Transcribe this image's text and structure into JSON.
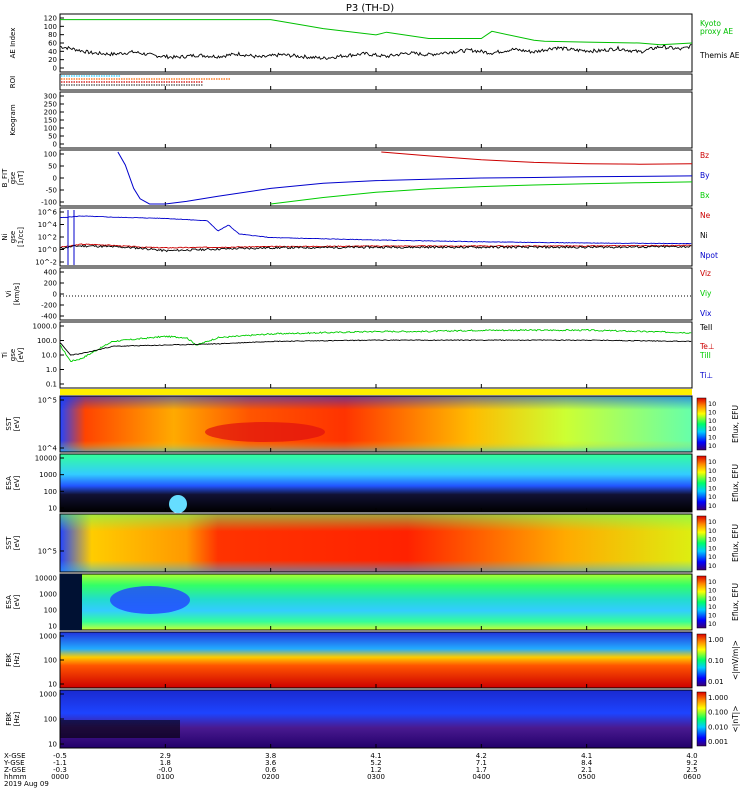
{
  "chart_data": {
    "type": "line",
    "title": "P3 (TH-D)",
    "footer": {
      "row_labels": [
        "X-GSE",
        "Y-GSE",
        "Z-GSE",
        "hhmm",
        "2019 Aug 09"
      ],
      "columns": [
        [
          "-0.5",
          "-1.1",
          "-0.3",
          "0000"
        ],
        [
          "2.9",
          "1.8",
          "-0.0",
          "0100"
        ],
        [
          "3.8",
          "3.6",
          "0.6",
          "0200"
        ],
        [
          "4.1",
          "5.2",
          "1.2",
          "0300"
        ],
        [
          "4.2",
          "7.1",
          "1.7",
          "0400"
        ],
        [
          "4.1",
          "8.4",
          "2.1",
          "0500"
        ],
        [
          "4.0",
          "9.2",
          "2.5",
          "0600"
        ]
      ]
    },
    "panels": [
      {
        "id": "ae",
        "ylabel": [
          "AE Index"
        ],
        "yticks": [
          "120",
          "100",
          "80",
          "60",
          "40",
          "20",
          "0"
        ],
        "series": [
          {
            "name": "Kyoto proxy AE",
            "color": "#00c000",
            "x": [
              0,
              0.5,
              1.0,
              1.5,
              2.0,
              2.3,
              2.5,
              3.0,
              3.1,
              3.5,
              4.0,
              4.1,
              4.5,
              4.6,
              5.0,
              5.5,
              5.7,
              6.0
            ],
            "y": [
              112,
              112,
              112,
              112,
              112,
              100,
              92,
              78,
              84,
              70,
              70,
              86,
              66,
              64,
              62,
              60,
              56,
              60
            ]
          },
          {
            "name": "Themis AE",
            "color": "#000000",
            "x": [
              0,
              0.1,
              0.3,
              0.5,
              0.7,
              0.9,
              1.1,
              1.3,
              1.5,
              1.7,
              1.9,
              2.1,
              2.3,
              2.5,
              2.7,
              2.9,
              3.1,
              3.3,
              3.5,
              3.7,
              3.9,
              4.1,
              4.3,
              4.5,
              4.7,
              4.9,
              5.1,
              5.3,
              5.5,
              5.7,
              5.9,
              6.0
            ],
            "y": [
              52,
              48,
              38,
              35,
              40,
              32,
              28,
              33,
              30,
              36,
              28,
              34,
              30,
              26,
              32,
              36,
              30,
              38,
              34,
              40,
              44,
              38,
              46,
              40,
              50,
              44,
              42,
              48,
              40,
              52,
              46,
              54
            ]
          }
        ]
      },
      {
        "id": "roi",
        "ylabel": [
          "ROI"
        ],
        "yticks": []
      },
      {
        "id": "keogram",
        "ylabel": [
          "Keogram"
        ],
        "yticks": [
          "300",
          "250",
          "200",
          "150",
          "100",
          "50",
          "0"
        ]
      },
      {
        "id": "bfield",
        "ylabel": [
          "B_FIT",
          "gse",
          "[nT]"
        ],
        "yticks": [
          "100",
          "50",
          "0",
          "-50",
          "-100"
        ],
        "series": [
          {
            "name": "Bz",
            "color": "#cc0000",
            "x": [
              3.05,
              3.5,
              4.0,
              4.5,
              5.0,
              5.5,
              6.0
            ],
            "y": [
              100,
              85,
              70,
              60,
              55,
              53,
              55
            ]
          },
          {
            "name": "By",
            "color": "#0000cc",
            "x": [
              0.55,
              0.62,
              0.7,
              0.76,
              0.85,
              1.0,
              1.2,
              1.5,
              2.0,
              2.5,
              3.0,
              3.5,
              4.0,
              4.5,
              5.0,
              5.5,
              6.0
            ],
            "y": [
              100,
              50,
              -40,
              -80,
              -100,
              -100,
              -90,
              -70,
              -40,
              -20,
              -10,
              -5,
              0,
              2,
              5,
              6,
              8
            ]
          },
          {
            "name": "Bx",
            "color": "#00cc00",
            "x": [
              2.0,
              2.5,
              3.0,
              3.5,
              4.0,
              4.5,
              5.0,
              5.5,
              6.0
            ],
            "y": [
              -100,
              -75,
              -55,
              -42,
              -33,
              -27,
              -22,
              -18,
              -15
            ]
          }
        ]
      },
      {
        "id": "density",
        "ylabel": [
          "Ni",
          "gse",
          "[1/cc]"
        ],
        "yticks": [
          "10^6",
          "10^4",
          "10^2",
          "10^0",
          "10^-2"
        ],
        "series": [
          {
            "name": "Ne",
            "color": "#cc0000",
            "x": [
              0,
              0.1,
              0.2,
              0.4,
              0.8,
              1.0,
              1.5,
              2.0,
              3.0,
              4.0,
              5.0,
              6.0
            ],
            "y": [
              0.3,
              0.5,
              0.8,
              0.7,
              0.3,
              0.2,
              0.3,
              0.4,
              0.5,
              0.5,
              0.5,
              0.6
            ]
          },
          {
            "name": "Ni",
            "color": "#000000",
            "x": [
              0,
              0.15,
              0.3,
              0.6,
              0.8,
              1.0,
              1.5,
              2.0,
              3.0,
              4.0,
              5.0,
              6.0
            ],
            "y": [
              0.1,
              0.5,
              0.5,
              0.3,
              0.1,
              -0.3,
              0.0,
              0.2,
              0.3,
              0.3,
              0.3,
              0.4
            ]
          },
          {
            "name": "Npot",
            "color": "#0000cc",
            "x": [
              0,
              0.2,
              0.5,
              1.0,
              1.4,
              1.5,
              1.6,
              1.7,
              2.0,
              3.0,
              4.0,
              5.0,
              6.0
            ],
            "y": [
              5.2,
              5.5,
              5.3,
              5.1,
              4.7,
              3.0,
              4.0,
              2.5,
              1.9,
              1.5,
              1.2,
              1.0,
              0.9
            ]
          }
        ]
      },
      {
        "id": "velocity",
        "ylabel": [
          "Vi",
          "[km/s]"
        ],
        "yticks": [
          "400",
          "200",
          "0",
          "-200",
          "-400"
        ],
        "series": [
          {
            "name": "Viz",
            "color": "#cc0000"
          },
          {
            "name": "Viy",
            "color": "#00cc00"
          },
          {
            "name": "Vix",
            "color": "#0000cc"
          }
        ]
      },
      {
        "id": "temperature",
        "ylabel": [
          "Ti",
          "gse",
          "[eV]"
        ],
        "yticks": [
          "1000.0",
          "100.0",
          "10.0",
          "1.0",
          "0.1"
        ],
        "series": [
          {
            "name": "TeII",
            "color": "#000000",
            "x": [
              0,
              0.1,
              0.2,
              0.5,
              1.0,
              1.5,
              2.0,
              3.0,
              4.0,
              5.0,
              6.0
            ],
            "y": [
              2.3,
              1.3,
              1.4,
              2.0,
              2.1,
              2.2,
              2.4,
              2.5,
              2.5,
              2.5,
              2.4
            ]
          },
          {
            "name": "Te⊥",
            "color": "#cc0000"
          },
          {
            "name": "TiII",
            "color": "#00cc00",
            "x": [
              0,
              0.1,
              0.2,
              0.5,
              1.0,
              1.2,
              1.3,
              1.5,
              2.0,
              2.5,
              3.0,
              3.5,
              4.0,
              4.5,
              5.0,
              5.5,
              6.0
            ],
            "y": [
              2.1,
              0.8,
              1.0,
              2.4,
              2.8,
              2.7,
              2.1,
              2.7,
              3.0,
              3.1,
              3.2,
              3.2,
              3.3,
              3.3,
              3.3,
              3.2,
              3.1
            ]
          },
          {
            "name": "Ti⊥",
            "color": "#0000cc"
          }
        ]
      },
      {
        "id": "sst_e",
        "ylabel": [
          "SST",
          "[eV]"
        ],
        "yticks": [
          "10^5",
          "10^4"
        ],
        "colorbar": "Eflux, EFU"
      },
      {
        "id": "esa_e",
        "ylabel": [
          "ESA",
          "[eV]"
        ],
        "yticks": [
          "10000",
          "1000",
          "100",
          "10"
        ],
        "colorbar": "Eflux, EFU"
      },
      {
        "id": "sst_i",
        "ylabel": [
          "SST",
          "[eV]"
        ],
        "yticks": [
          "10^5"
        ],
        "colorbar": "Eflux, EFU"
      },
      {
        "id": "esa_i",
        "ylabel": [
          "ESA",
          "[eV]"
        ],
        "yticks": [
          "10000",
          "1000",
          "100",
          "10"
        ],
        "colorbar": "Eflux, EFU"
      },
      {
        "id": "fbk_e",
        "ylabel": [
          "FBK",
          "[Hz]"
        ],
        "yticks": [
          "1000",
          "100",
          "10"
        ],
        "colorbar": "<|mV/m|>",
        "colorbar_ticks": [
          "1.00",
          "0.10",
          "0.01"
        ]
      },
      {
        "id": "fbk_b",
        "ylabel": [
          "FBK",
          "[Hz]"
        ],
        "yticks": [
          "1000",
          "100",
          "10"
        ],
        "colorbar": "<|nT|>",
        "colorbar_ticks": [
          "1.000",
          "0.100",
          "0.010",
          "0.001"
        ]
      }
    ]
  }
}
